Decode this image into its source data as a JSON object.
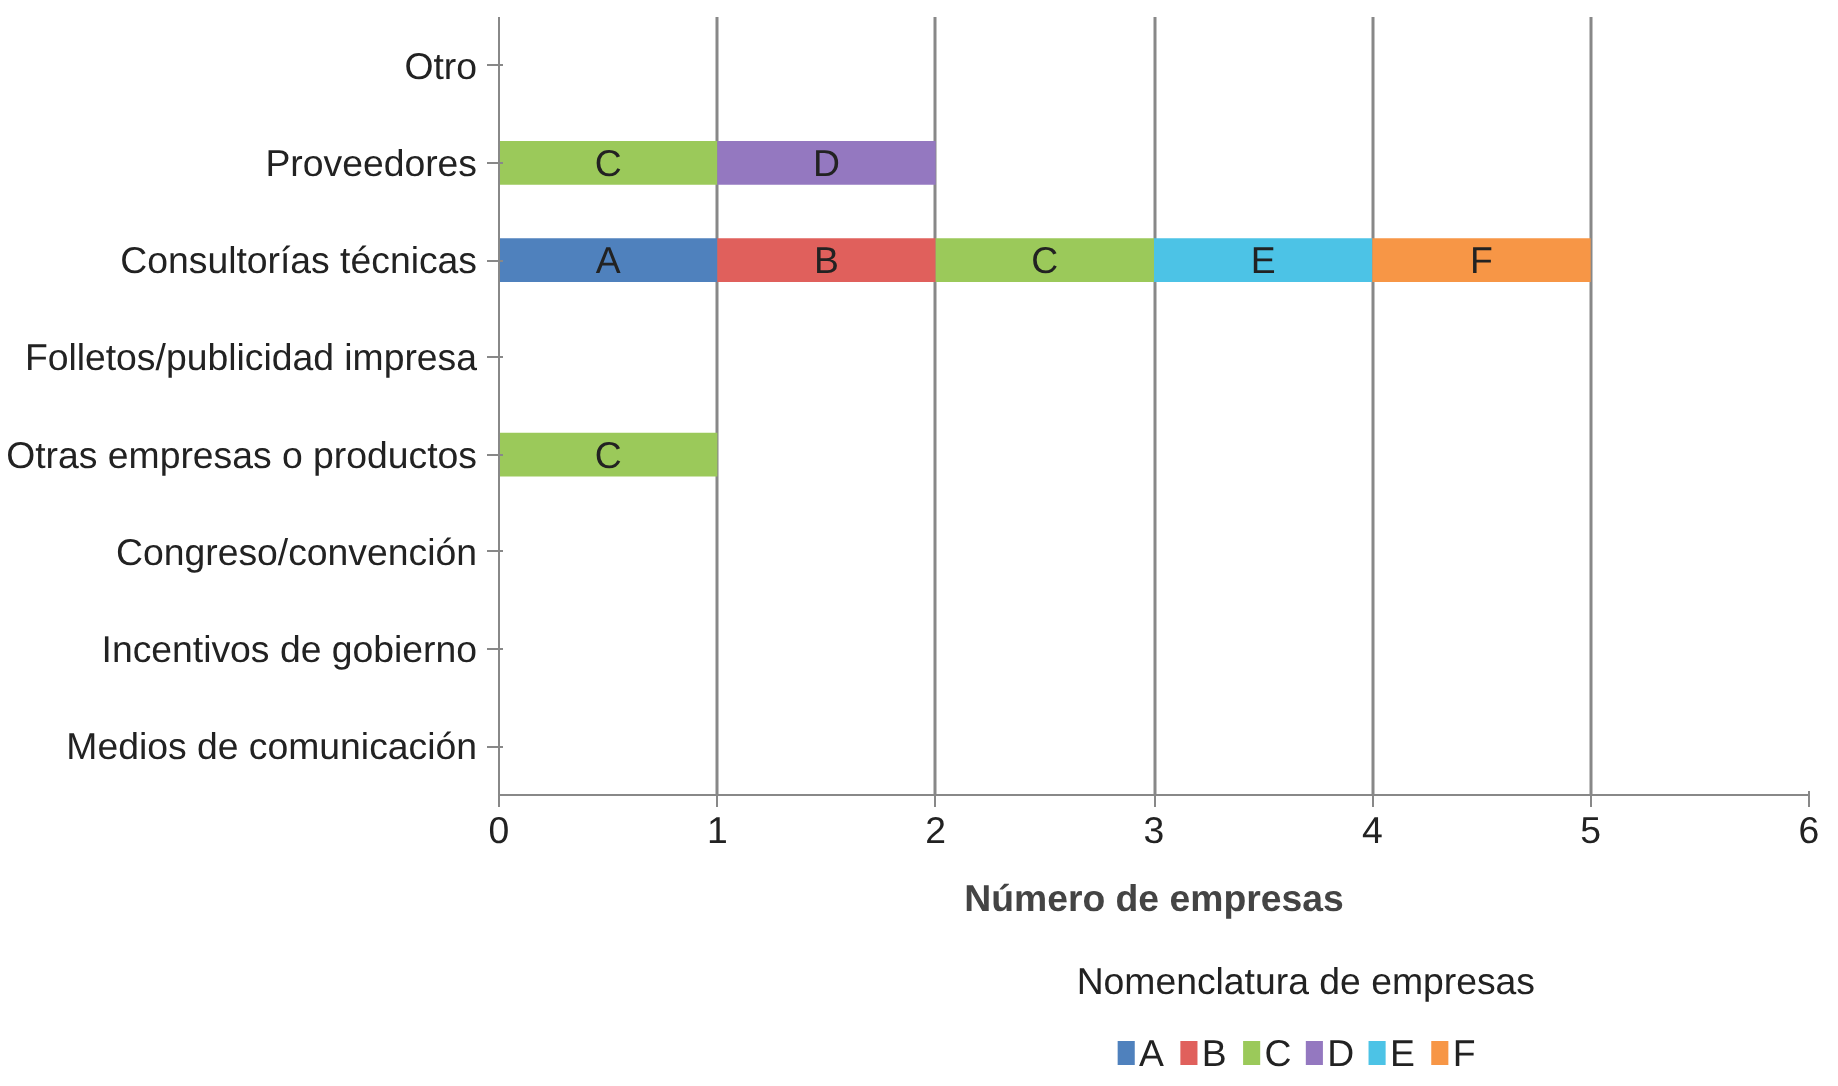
{
  "chart_data": {
    "type": "bar",
    "orientation": "horizontal",
    "stacked": true,
    "xlabel": "Número de empresas",
    "legend_title": "Nomenclatura de empresas",
    "legend": "bottom",
    "grid": "x",
    "categories": [
      "Otro",
      "Proveedores",
      "Consultorías técnicas",
      "Folletos/publicidad impresa",
      "Otras empresas o productos",
      "Congreso/convención",
      "Incentivos de gobierno",
      "Medios de comunicación"
    ],
    "xlim": [
      0,
      6
    ],
    "xticks": [
      0,
      1,
      2,
      3,
      4,
      5,
      6
    ],
    "series": [
      {
        "name": "A",
        "color": "#4f81bd",
        "values": [
          null,
          null,
          1,
          null,
          null,
          null,
          null,
          null
        ],
        "value_labels": [
          null,
          null,
          "A",
          null,
          null,
          null,
          null,
          null
        ]
      },
      {
        "name": "B",
        "color": "#e0605c",
        "values": [
          null,
          null,
          1,
          null,
          null,
          null,
          null,
          null
        ],
        "value_labels": [
          null,
          null,
          "B",
          null,
          null,
          null,
          null,
          null
        ]
      },
      {
        "name": "C",
        "color": "#9bc95a",
        "values": [
          null,
          1,
          1,
          null,
          1,
          null,
          null,
          null
        ],
        "value_labels": [
          null,
          "C",
          "C",
          null,
          "C",
          null,
          null,
          null
        ]
      },
      {
        "name": "D",
        "color": "#9478c0",
        "values": [
          null,
          1,
          null,
          null,
          null,
          null,
          null,
          null
        ],
        "value_labels": [
          null,
          "D",
          null,
          null,
          null,
          null,
          null,
          null
        ]
      },
      {
        "name": "E",
        "color": "#4cc3e6",
        "values": [
          null,
          null,
          1,
          null,
          null,
          null,
          null,
          null
        ],
        "value_labels": [
          null,
          null,
          "E",
          null,
          null,
          null,
          null,
          null
        ]
      },
      {
        "name": "F",
        "color": "#f79646",
        "values": [
          null,
          null,
          1,
          null,
          null,
          null,
          null,
          null
        ],
        "value_labels": [
          null,
          null,
          "F",
          null,
          null,
          null,
          null,
          null
        ]
      }
    ]
  }
}
